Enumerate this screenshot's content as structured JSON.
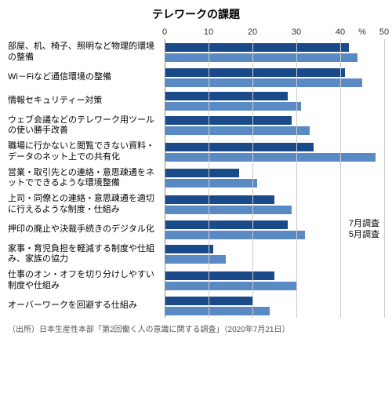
{
  "title": "テレワークの課題",
  "xmax": 50,
  "ticks": [
    0,
    10,
    20,
    30,
    40,
    50
  ],
  "pct_label": "%",
  "colors": {
    "july": "#1a4a8a",
    "may": "#5a8ac4",
    "grid": "#cccccc",
    "baseline": "#888888"
  },
  "legend": {
    "july": "7月調査",
    "may": "5月調査"
  },
  "categories": [
    {
      "label": "部屋、机、椅子、照明など物理的環境の整備",
      "july": 42,
      "may": 44
    },
    {
      "label": "Wi－Fiなど通信環境の整備",
      "july": 41,
      "may": 45
    },
    {
      "label": "情報セキュリティー対策",
      "july": 28,
      "may": 31
    },
    {
      "label": "ウェブ会議などのテレワーク用ツールの使い勝手改善",
      "july": 29,
      "may": 33
    },
    {
      "label": "職場に行かないと閲覧できない資料・データのネット上での共有化",
      "july": 34,
      "may": 48
    },
    {
      "label": "営業・取引先との連絡・意思疎通をネットでできるような環境整備",
      "july": 17,
      "may": 21
    },
    {
      "label": "上司・同僚との連絡・意思疎通を適切に行えるような制度・仕組み",
      "july": 25,
      "may": 29
    },
    {
      "label": "押印の廃止や決裁手続きのデジタル化",
      "july": 28,
      "may": 32
    },
    {
      "label": "家事・育児負担を軽減する制度や仕組み、家族の協力",
      "july": 11,
      "may": 14
    },
    {
      "label": "仕事のオン・オフを切り分けしやすい制度や仕組み",
      "july": 25,
      "may": 30
    },
    {
      "label": "オーバーワークを回避する仕組み",
      "july": 20,
      "may": 24
    }
  ],
  "source": "（出所）日本生産性本部「第2回働く人の意識に関する調査」（2020年7月21日）"
}
